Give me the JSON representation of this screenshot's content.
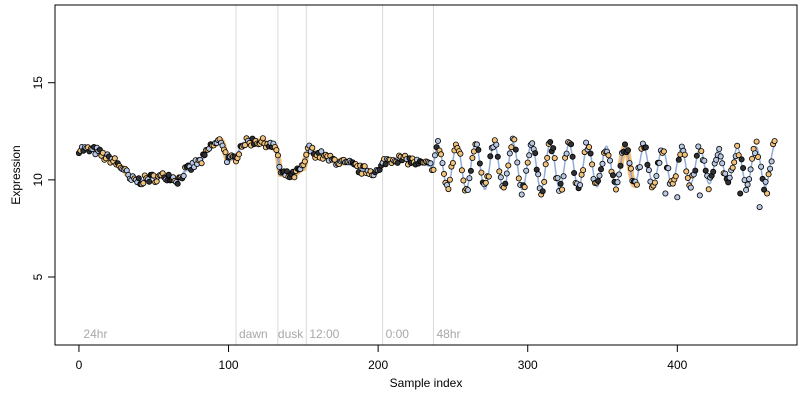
{
  "chart_data": {
    "type": "scatter",
    "title": "",
    "xlabel": "Sample index",
    "ylabel": "Expression",
    "xlim": [
      -16,
      480
    ],
    "ylim": [
      1.5,
      19
    ],
    "xticks": [
      0,
      100,
      200,
      300,
      400
    ],
    "yticks": [
      5,
      10,
      15
    ],
    "grid": false,
    "legend": "none",
    "colors": {
      "point_orange": "#f2c27a",
      "point_blue": "#b8c9e6",
      "point_dark": "#2f3033",
      "point_edge": "#000000",
      "fit_line": "#7f9fcf",
      "band": "#f0a84a",
      "vline": "#d9d9d9",
      "annotation": "#a8a8a8"
    },
    "vertical_lines": [
      105,
      133,
      152,
      203,
      237
    ],
    "annotations": [
      {
        "label": "24hr",
        "x": 3
      },
      {
        "label": "dawn",
        "x": 107
      },
      {
        "label": "dusk",
        "x": 133
      },
      {
        "label": "12:00",
        "x": 154
      },
      {
        "label": "0:00",
        "x": 205
      },
      {
        "label": "48hr",
        "x": 239
      }
    ],
    "series": [
      {
        "style": "smooth",
        "segments": [
          [
            0,
            31
          ],
          [
            31,
            90
          ],
          [
            90,
            105
          ],
          [
            105,
            133
          ],
          [
            133,
            152
          ],
          [
            152,
            203
          ],
          [
            203,
            237
          ]
        ],
        "knots": [
          [
            0,
            11.6
          ],
          [
            10,
            11.5
          ],
          [
            20,
            11.1
          ],
          [
            30,
            10.6
          ],
          [
            34,
            10.0
          ],
          [
            40,
            9.95
          ],
          [
            50,
            10.1
          ],
          [
            60,
            10.2
          ],
          [
            66,
            10.0
          ],
          [
            72,
            10.5
          ],
          [
            80,
            10.9
          ],
          [
            90,
            11.8
          ],
          [
            95,
            12.0
          ],
          [
            100,
            11.0
          ],
          [
            104,
            11.1
          ],
          [
            110,
            11.9
          ],
          [
            118,
            12.0
          ],
          [
            125,
            11.9
          ],
          [
            132,
            11.6
          ],
          [
            135,
            10.3
          ],
          [
            142,
            10.2
          ],
          [
            150,
            10.6
          ],
          [
            153,
            11.6
          ],
          [
            160,
            11.3
          ],
          [
            170,
            11.0
          ],
          [
            180,
            10.8
          ],
          [
            190,
            10.5
          ],
          [
            200,
            10.4
          ],
          [
            205,
            11.0
          ],
          [
            212,
            11.1
          ],
          [
            220,
            11.0
          ],
          [
            230,
            10.8
          ],
          [
            237,
            10.7
          ]
        ]
      },
      {
        "style": "oscillating",
        "segments": [
          [
            237,
            465
          ]
        ],
        "mean": 10.7,
        "amplitude": 1.05,
        "period": 12.5,
        "phase_start": 237
      },
      {
        "style": "dips",
        "dips": [
          [
            400,
            9.1
          ],
          [
            415,
            9.2
          ],
          [
            442,
            9.3
          ],
          [
            455,
            8.6
          ],
          [
            460,
            9.3
          ],
          [
            392,
            9.3
          ],
          [
            323,
            9.5
          ]
        ]
      }
    ],
    "n_points": 466
  }
}
